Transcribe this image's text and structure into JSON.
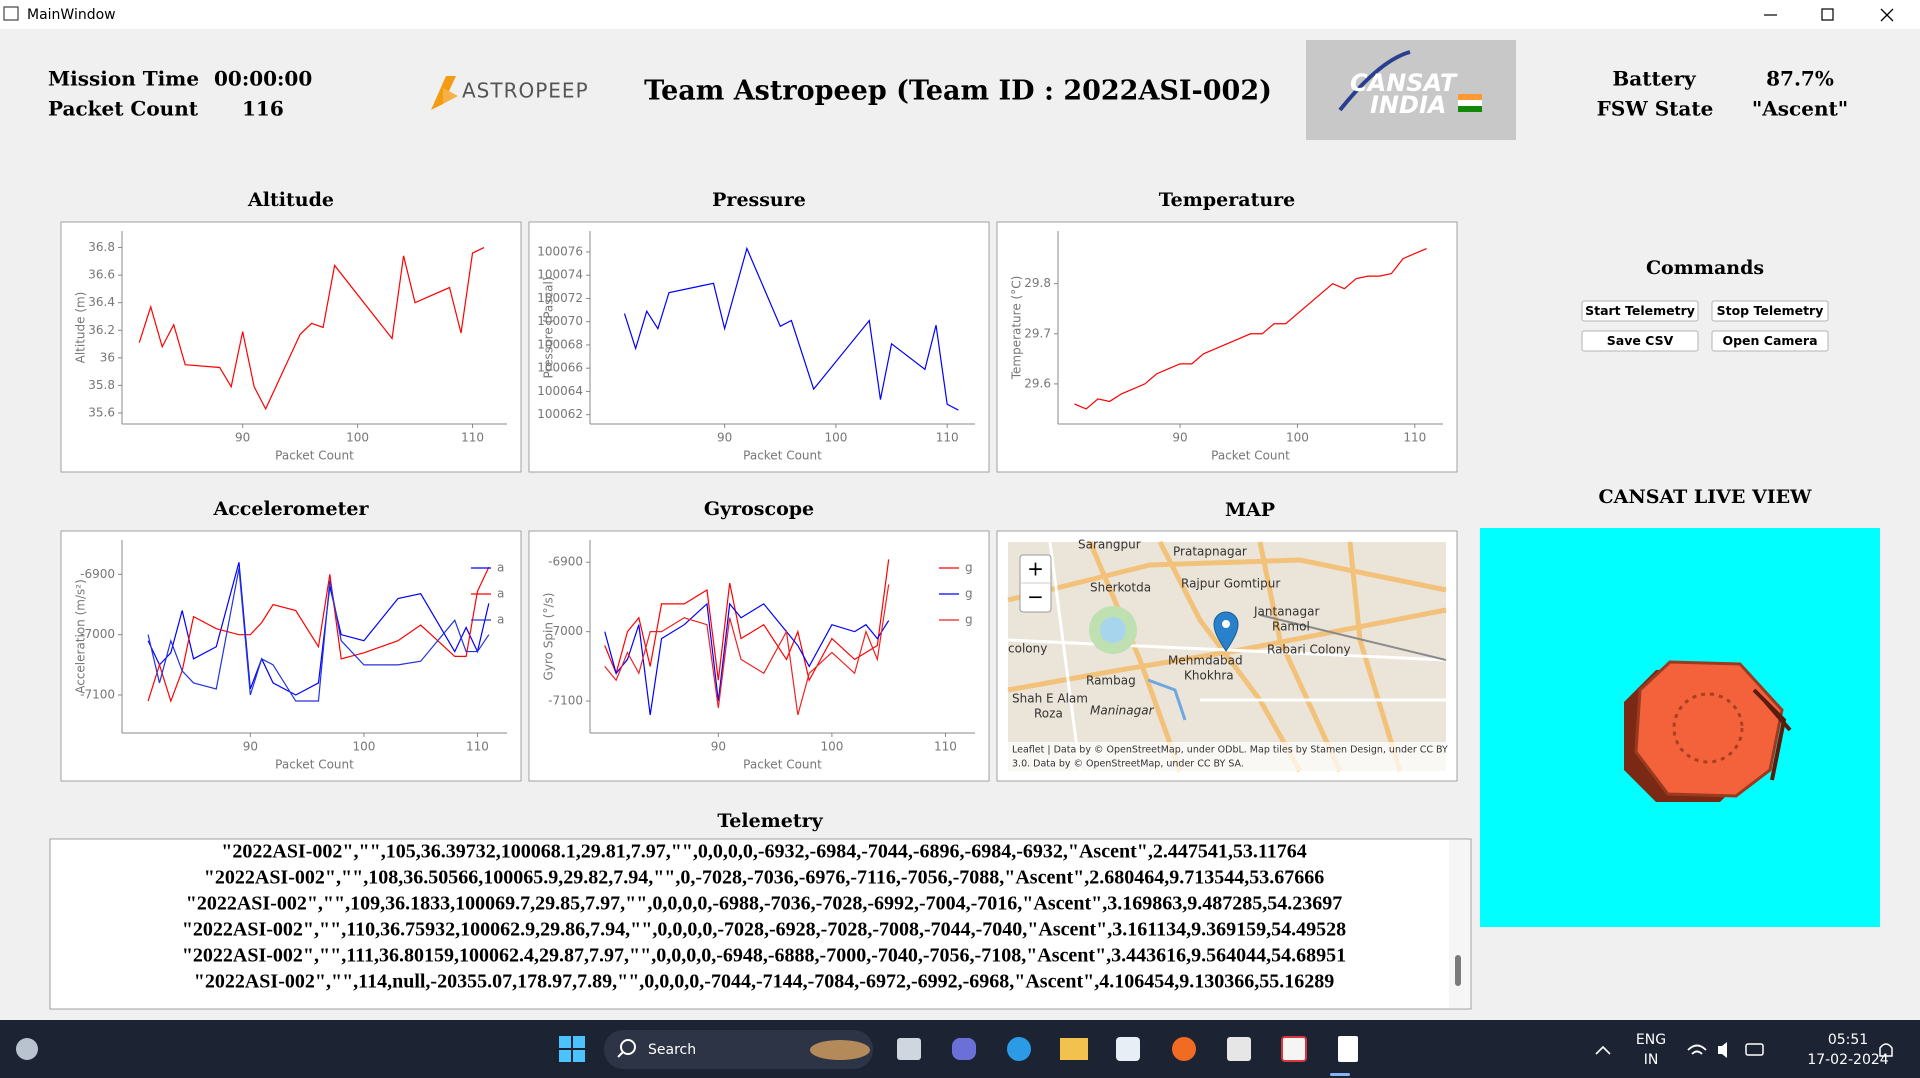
{
  "window": {
    "title": "MainWindow"
  },
  "header": {
    "mission_time_label": "Mission Time",
    "mission_time": "00:00:00",
    "packet_count_label": "Packet Count",
    "packet_count": 116,
    "logo": "ASTROPEEP",
    "team_title": "Team Astropeep (Team ID : 2022ASI-002)",
    "badge": [
      "CANSAT",
      "INDIA"
    ],
    "battery_label": "Battery",
    "battery": "87.7%",
    "fsw_state_label": "FSW State",
    "fsw_state": "\"Ascent\""
  },
  "commands": {
    "title": "Commands",
    "buttons": [
      "Start Telemetry",
      "Stop Telemetry",
      "Save CSV",
      "Open Camera"
    ]
  },
  "live_view": {
    "title": "CANSAT LIVE VIEW"
  },
  "map": {
    "title": "MAP",
    "labels": [
      "Sarangpur",
      "Pratapnagar",
      "Sherkotda",
      "Rajpur Gomtipur",
      "Jantanagar",
      "Ramol",
      "Rabari Colony",
      "Mehmdabad",
      "Khokhra",
      "colony",
      "Rambag",
      "Shah E Alam",
      "Roza",
      "Maninagar"
    ],
    "zoom_in": "+",
    "zoom_out": "−",
    "attribution": [
      "Leaflet | Data by © OpenStreetMap, under ODbL. Map tiles by Stamen Design, under CC BY",
      "3.0. Data by © OpenStreetMap, under CC BY SA."
    ]
  },
  "telemetry": {
    "title": "Telemetry",
    "lines": [
      "\"2022ASI-002\",\"\",105,36.39732,100068.1,29.81,7.97,\"\",0,0,0,0,-6932,-6984,-7044,-6896,-6984,-6932,\"Ascent\",2.447541,53.11764",
      "\"2022ASI-002\",\"\",108,36.50566,100065.9,29.82,7.94,\"\",0,-7028,-7036,-6976,-7116,-7056,-7088,\"Ascent\",2.680464,9.713544,53.67666",
      "\"2022ASI-002\",\"\",109,36.1833,100069.7,29.85,7.97,\"\",0,0,0,0,-6988,-7036,-7028,-6992,-7004,-7016,\"Ascent\",3.169863,9.487285,54.23697",
      "\"2022ASI-002\",\"\",110,36.75932,100062.9,29.86,7.94,\"\",0,0,0,0,-7028,-6928,-7028,-7008,-7044,-7040,\"Ascent\",3.161134,9.369159,54.49528",
      "\"2022ASI-002\",\"\",111,36.80159,100062.4,29.87,7.97,\"\",0,0,0,0,-6948,-6888,-7000,-7040,-7056,-7108,\"Ascent\",3.443616,9.564044,54.68951",
      "\"2022ASI-002\",\"\",114,null,-20355.07,178.97,7.89,\"\",0,0,0,0,-7044,-7144,-7084,-6972,-6992,-6968,\"Ascent\",4.106454,9.130366,55.16289"
    ]
  },
  "taskbar": {
    "search": "Search",
    "language": [
      "ENG",
      "IN"
    ],
    "time": "05:51",
    "date": "17-02-2024"
  },
  "chart_data": [
    {
      "type": "line",
      "title": "Altitude",
      "xlabel": "Packet Count",
      "ylabel": "Altitude (m)",
      "color": "#ff0000",
      "x": [
        81,
        82,
        83,
        84,
        85,
        88,
        89,
        90,
        91,
        92,
        95,
        96,
        97,
        98,
        103,
        104,
        105,
        108,
        109,
        110,
        111
      ],
      "values": [
        36.11,
        36.37,
        36.08,
        36.24,
        35.95,
        35.93,
        35.79,
        36.19,
        35.79,
        35.63,
        36.17,
        36.25,
        36.22,
        36.67,
        36.14,
        36.74,
        36.4,
        36.51,
        36.18,
        36.76,
        36.8
      ],
      "xlim": [
        79.5,
        113
      ],
      "xticks": [
        90,
        100,
        110
      ],
      "ylim": [
        35.52,
        36.92
      ],
      "yticks": [
        35.6,
        35.8,
        36,
        36.2,
        36.4,
        36.6,
        36.8
      ]
    },
    {
      "type": "line",
      "title": "Pressure",
      "xlabel": "Packet Count",
      "ylabel": "Pressure (Pascal)",
      "color": "#0000ff",
      "x": [
        81,
        82,
        83,
        84,
        85,
        88,
        89,
        90,
        92,
        95,
        96,
        98,
        103,
        104,
        105,
        108,
        109,
        110,
        111
      ],
      "values": [
        100070.7,
        100067.7,
        100070.9,
        100069.4,
        100072.5,
        100073.1,
        100073.3,
        100069.4,
        100076.3,
        100069.6,
        100070.1,
        100064.2,
        100070.1,
        100063.3,
        100068.1,
        100065.9,
        100069.7,
        100062.9,
        100062.4
      ],
      "xlim": [
        77.9,
        112.5
      ],
      "xticks": [
        90,
        100,
        110
      ],
      "ylim": [
        100061.2,
        100077.8
      ],
      "yticks": [
        100062,
        100064,
        100066,
        100068,
        100070,
        100072,
        100074,
        100076
      ]
    },
    {
      "type": "line",
      "title": "Temperature",
      "xlabel": "Packet Count",
      "ylabel": "Temperature (°C)",
      "color": "#ff0000",
      "x": [
        81,
        82,
        83,
        84,
        85,
        86,
        87,
        88,
        89,
        90,
        91,
        92,
        93,
        94,
        95,
        96,
        97,
        98,
        99,
        100,
        101,
        102,
        103,
        104,
        105,
        106,
        107,
        108,
        109,
        110,
        111
      ],
      "values": [
        29.56,
        29.55,
        29.57,
        29.565,
        29.58,
        29.59,
        29.6,
        29.62,
        29.63,
        29.64,
        29.64,
        29.66,
        29.67,
        29.68,
        29.69,
        29.7,
        29.7,
        29.72,
        29.72,
        29.74,
        29.76,
        29.78,
        29.8,
        29.79,
        29.81,
        29.815,
        29.815,
        29.82,
        29.85,
        29.86,
        29.87
      ],
      "xlim": [
        79.6,
        112.4
      ],
      "xticks": [
        90,
        100,
        110
      ],
      "ylim": [
        29.52,
        29.905
      ],
      "yticks": [
        29.6,
        29.7,
        29.8
      ]
    },
    {
      "type": "line",
      "title": "Accelerometer",
      "xlabel": "Packet Count",
      "ylabel": "Acceleration (m/s²)",
      "legend": "upper right",
      "x": [
        81,
        82,
        83,
        84,
        85,
        87,
        89,
        90,
        91,
        92,
        94,
        96,
        97,
        98,
        100,
        103,
        105,
        108,
        109,
        110,
        111
      ],
      "series": [
        {
          "name": "a",
          "color": "#0000ff",
          "values": [
            -7010,
            -7050,
            -7030,
            -6960,
            -7040,
            -7020,
            -6880,
            -7090,
            -7040,
            -7080,
            -7100,
            -7080,
            -6920,
            -7000,
            -7010,
            -6940,
            -6932,
            -7028,
            -6988,
            -7028,
            -6948
          ]
        },
        {
          "name": "a",
          "color": "#ff0000",
          "values": [
            -7110,
            -7050,
            -7110,
            -7060,
            -6970,
            -6990,
            -7000,
            -7000,
            -6980,
            -6950,
            -6960,
            -7020,
            -6900,
            -7040,
            -7030,
            -7010,
            -6984,
            -7036,
            -7036,
            -6928,
            -6888
          ]
        },
        {
          "name": "a",
          "color": "#2233dd",
          "values": [
            -7000,
            -7080,
            -7010,
            -7060,
            -7080,
            -7090,
            -6890,
            -7100,
            -7040,
            -7050,
            -7110,
            -7110,
            -6910,
            -7010,
            -7050,
            -7050,
            -7044,
            -6976,
            -7028,
            -7028,
            -7000
          ]
        }
      ],
      "xlim": [
        78.7,
        112.6
      ],
      "xticks": [
        90,
        100,
        110
      ],
      "ylim": [
        -7163,
        -6843
      ],
      "yticks": [
        -7100,
        -7000,
        -6900
      ]
    },
    {
      "type": "line",
      "title": "Gyroscope",
      "xlabel": "Packet Count",
      "ylabel": "Gyro Spin (°/s)",
      "legend": "upper right",
      "x": [
        80,
        81,
        82,
        83,
        84,
        85,
        87,
        89,
        90,
        91,
        92,
        94,
        96,
        97,
        98,
        100,
        102,
        103,
        104,
        105
      ],
      "series": [
        {
          "name": "g",
          "color": "#ff0000",
          "values": [
            -7020,
            -7060,
            -7000,
            -6980,
            -7050,
            -6960,
            -6960,
            -6940,
            -7070,
            -6930,
            -7010,
            -6990,
            -7040,
            -7000,
            -7070,
            -7010,
            -7040,
            -7030,
            -7020,
            -6896
          ]
        },
        {
          "name": "g",
          "color": "#0000ff",
          "values": [
            -7000,
            -7060,
            -7040,
            -6990,
            -7120,
            -7010,
            -6990,
            -6960,
            -7100,
            -6960,
            -6980,
            -6960,
            -7000,
            -7020,
            -7050,
            -6990,
            -7000,
            -6990,
            -7010,
            -6984
          ]
        },
        {
          "name": "g",
          "color": "#ee2222",
          "values": [
            -7050,
            -7070,
            -7030,
            -7060,
            -7000,
            -7000,
            -6980,
            -6990,
            -7110,
            -6980,
            -7040,
            -7060,
            -7000,
            -7120,
            -7060,
            -7030,
            -7060,
            -7000,
            -7040,
            -6932
          ]
        }
      ],
      "xlim": [
        78.7,
        112.6
      ],
      "xticks": [
        90,
        100,
        110
      ],
      "ylim": [
        -7146,
        -6868
      ],
      "yticks": [
        -7100,
        -7000,
        -6900
      ]
    }
  ]
}
